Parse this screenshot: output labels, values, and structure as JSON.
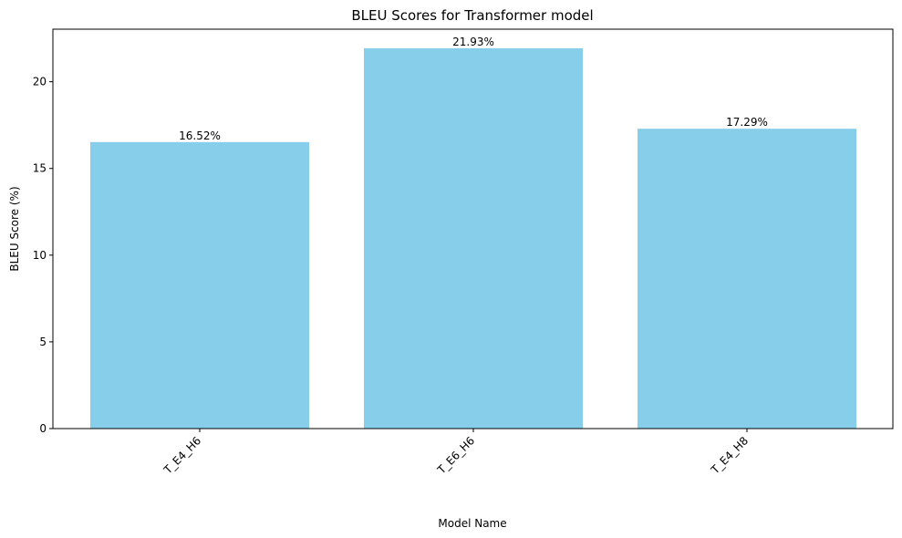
{
  "chart_data": {
    "type": "bar",
    "title": "BLEU Scores for Transformer model",
    "xlabel": "Model Name",
    "ylabel": "BLEU Score (%)",
    "categories": [
      "T_E4_H6",
      "T_E6_H6",
      "T_E4_H8"
    ],
    "values": [
      16.52,
      21.93,
      17.29
    ],
    "data_labels": [
      "16.52%",
      "21.93%",
      "17.29%"
    ],
    "ylim": [
      0,
      23.03
    ],
    "y_ticks": [
      0,
      5,
      10,
      15,
      20
    ],
    "y_tick_labels": [
      "0",
      "5",
      "10",
      "15",
      "20"
    ],
    "grid": false,
    "legend": "none",
    "bar_color": "#87CEEB"
  }
}
